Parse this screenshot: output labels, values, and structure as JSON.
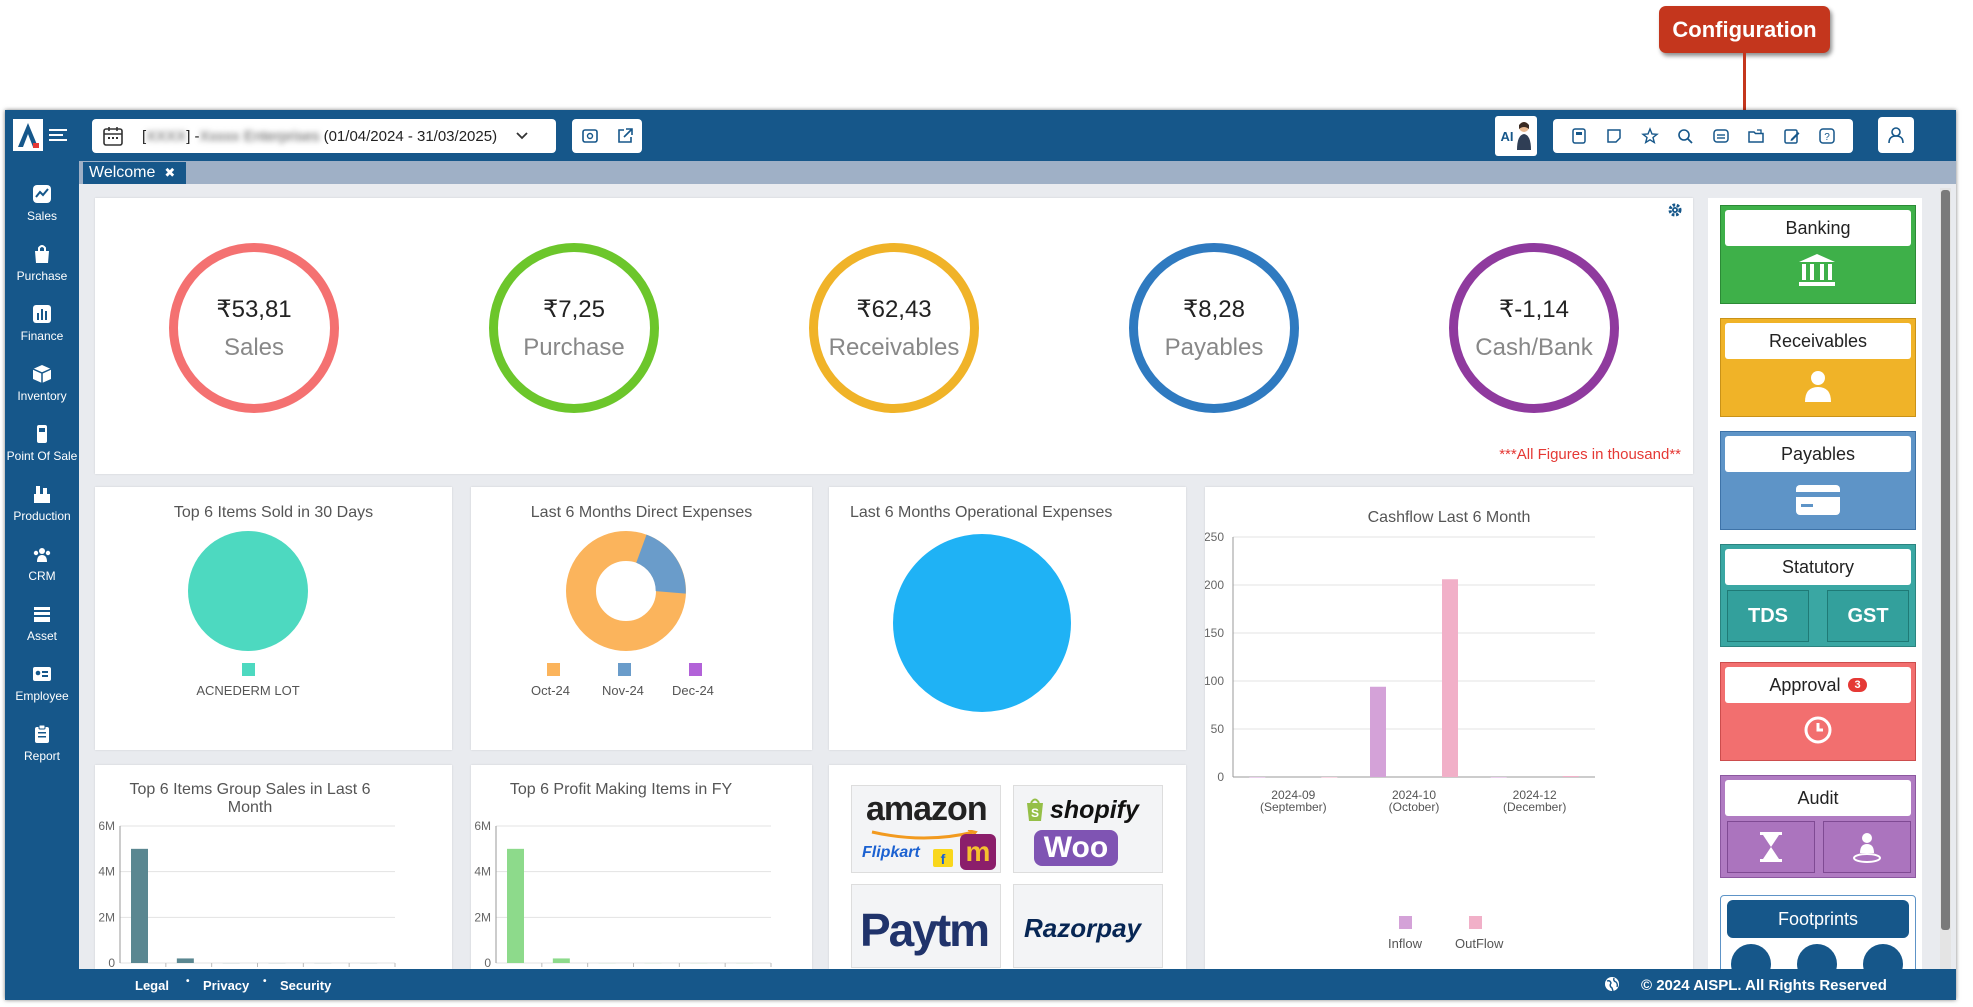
{
  "callout": {
    "label": "Configuration"
  },
  "header": {
    "company_prefix": "[",
    "company_code": "XXXX",
    "company_mid": "] - ",
    "company_name": "Xxxxx Enterprises",
    "period": "(01/04/2024 - 31/03/2025)",
    "ai_badge": "AI",
    "toolbar_icons": [
      "calculator-icon",
      "sticky-note-icon",
      "star-icon",
      "search-icon",
      "configuration-icon",
      "folder-share-icon",
      "edit-note-icon",
      "help-icon"
    ]
  },
  "tabs": [
    {
      "label": "Welcome",
      "close": "✖"
    }
  ],
  "sidebar": {
    "items": [
      "Sales",
      "Purchase",
      "Finance",
      "Inventory",
      "Point Of Sale",
      "Production",
      "CRM",
      "Asset",
      "Employee",
      "Report"
    ]
  },
  "summary": {
    "items": [
      {
        "value": "₹53,81",
        "label": "Sales",
        "color": "#f47171"
      },
      {
        "value": "₹7,25",
        "label": "Purchase",
        "color": "#6cc62b"
      },
      {
        "value": "₹62,43",
        "label": "Receivables",
        "color": "#f0b328"
      },
      {
        "value": "₹8,28",
        "label": "Payables",
        "color": "#2f7ac0"
      },
      {
        "value": "₹-1,14",
        "label": "Cash/Bank",
        "color": "#8f3a9e"
      }
    ],
    "note": "***All Figures in thousand**"
  },
  "right_panel": {
    "banking": "Banking",
    "receivables": "Receivables",
    "payables": "Payables",
    "statutory": "Statutory",
    "tds": "TDS",
    "gst": "GST",
    "approval": "Approval",
    "approval_count": "3",
    "audit": "Audit",
    "footprints": "Footprints"
  },
  "integrations": {
    "amazon": "amazon",
    "flipkart": "Flipkart",
    "meesho": "m",
    "shopify": "shopify",
    "woo": "Woo",
    "paytm": "Paytm",
    "razorpay": "Razorpay"
  },
  "footer": {
    "links": [
      "Legal",
      "Privacy",
      "Security"
    ],
    "copyright": "© 2024 AISPL. All Rights Reserved"
  },
  "chart_data": [
    {
      "type": "pie",
      "title": "Top 6 Items Sold in 30 Days",
      "slices": [
        {
          "label": "ACNEDERM LOT",
          "value": 100,
          "color": "#4dd9c0"
        }
      ]
    },
    {
      "type": "pie",
      "title": "Last 6 Months Direct Expenses",
      "donut": true,
      "slices": [
        {
          "label": "Oct-24",
          "value": 88,
          "color": "#fbb45c"
        },
        {
          "label": "Nov-24",
          "value": 12,
          "color": "#6a9cca"
        },
        {
          "label": "Dec-24",
          "value": 0,
          "color": "#b262d8"
        }
      ]
    },
    {
      "type": "pie",
      "title": "Last 6 Months Operational Expenses",
      "slices": [
        {
          "label": "",
          "value": 100,
          "color": "#1fb2f5"
        }
      ]
    },
    {
      "type": "bar",
      "title": "Cashflow Last 6 Month",
      "categories": [
        "2024-09 (September)",
        "2024-10 (October)",
        "2024-12 (December)"
      ],
      "series": [
        {
          "name": "Inflow",
          "color": "#d4a2d8",
          "values": [
            0,
            94,
            0
          ]
        },
        {
          "name": "OutFlow",
          "color": "#f1b0c8",
          "values": [
            0,
            206,
            1
          ]
        }
      ],
      "yticks": [
        "0",
        "50",
        "100",
        "150",
        "200",
        "250"
      ],
      "ylim": [
        0,
        250
      ]
    },
    {
      "type": "bar",
      "title": "Top 6 Items Group Sales in Last 6 Month",
      "color": "#5a8791",
      "values": [
        5,
        0.2,
        0,
        0,
        0,
        0
      ],
      "yticks": [
        "0",
        "2M",
        "4M",
        "6M"
      ],
      "ylim": [
        0,
        6
      ]
    },
    {
      "type": "bar",
      "title": "Top 6 Profit Making Items in FY",
      "color": "#8dda8b",
      "values": [
        5,
        0.2,
        0,
        0,
        0,
        0
      ],
      "yticks": [
        "0",
        "2M",
        "4M",
        "6M"
      ],
      "ylim": [
        0,
        6
      ]
    }
  ]
}
